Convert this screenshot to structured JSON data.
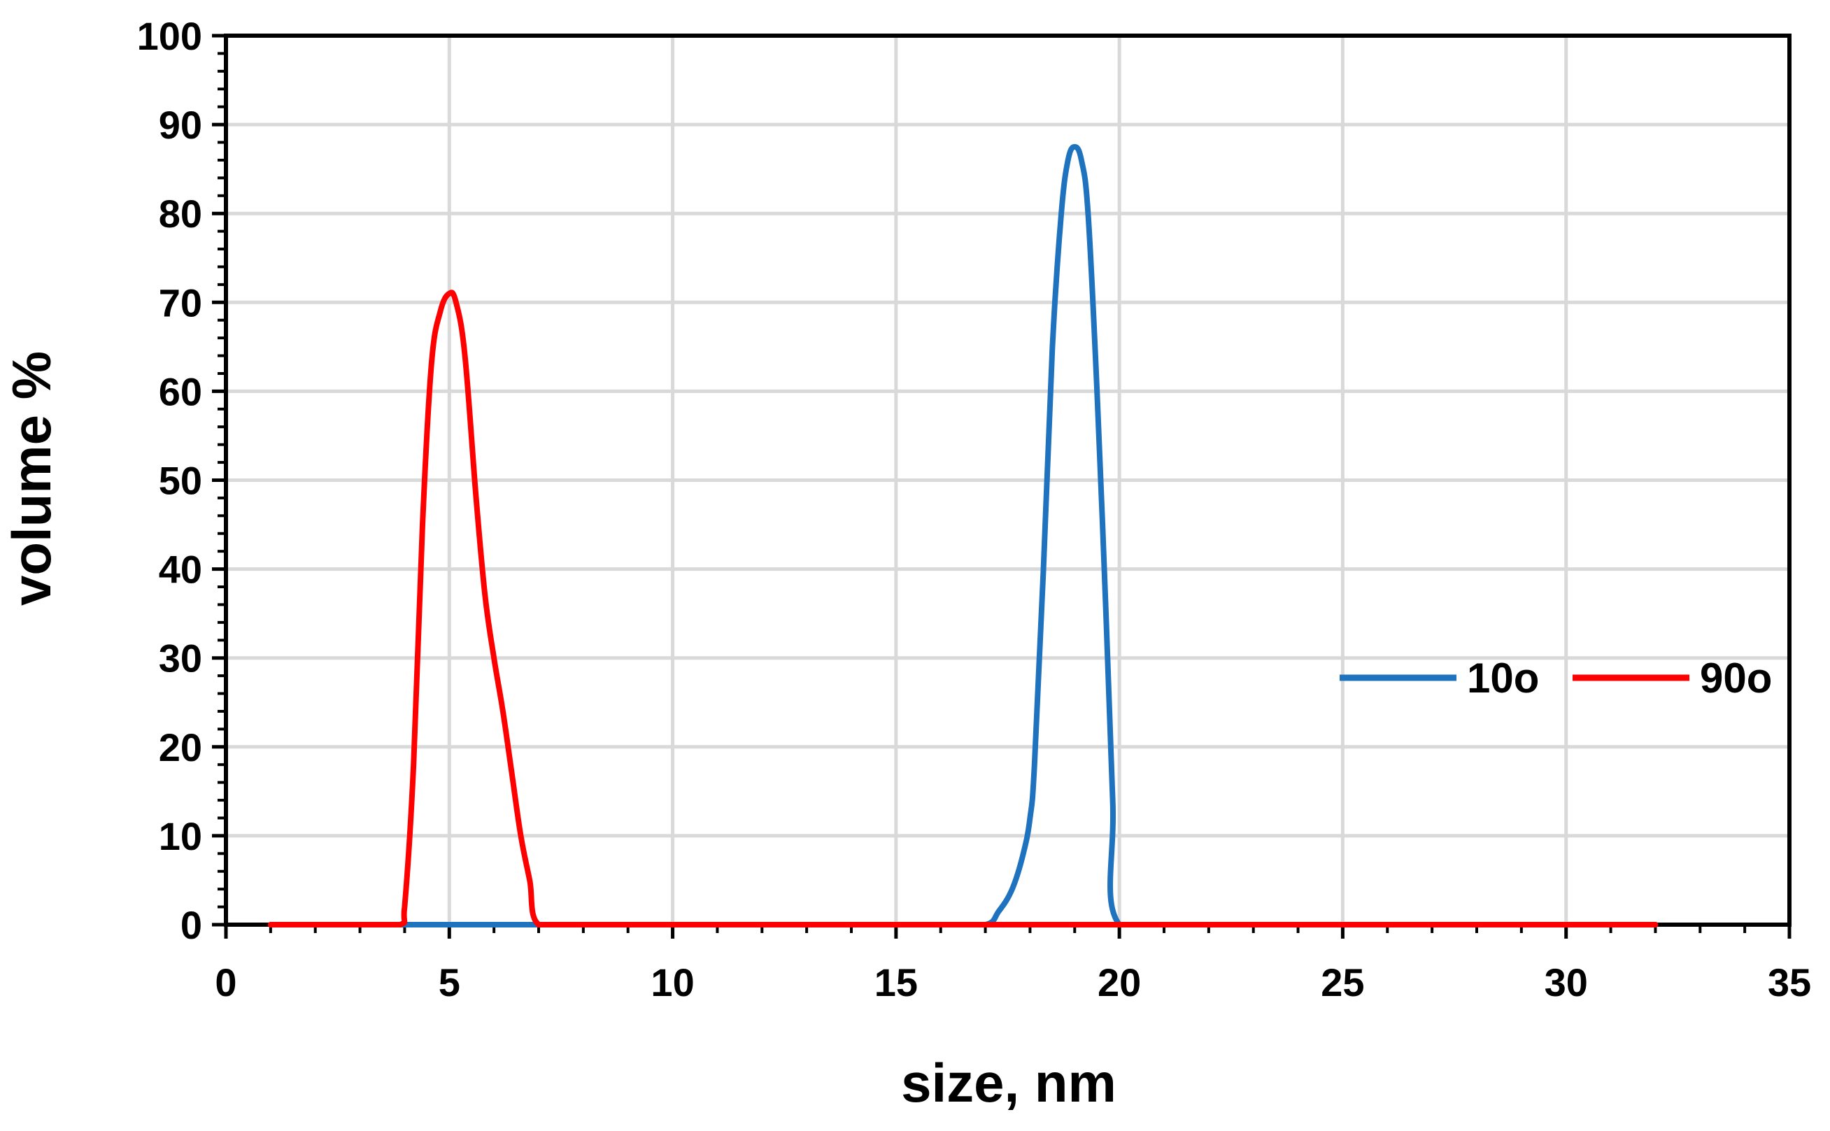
{
  "chart_data": {
    "type": "line",
    "title": "",
    "xlabel": "size, nm",
    "ylabel": "volume %",
    "xlim": [
      0,
      35
    ],
    "ylim": [
      0,
      100
    ],
    "x_ticks": [
      0,
      5,
      10,
      15,
      20,
      25,
      30,
      35
    ],
    "y_ticks": [
      0,
      10,
      20,
      30,
      40,
      50,
      60,
      70,
      80,
      90,
      100
    ],
    "x_tick_labels": [
      "0",
      "5",
      "10",
      "15",
      "20",
      "25",
      "30",
      "35"
    ],
    "y_tick_labels": [
      "0",
      "10",
      "20",
      "30",
      "40",
      "50",
      "60",
      "70",
      "80",
      "90",
      "100"
    ],
    "grid": true,
    "legend_position": "right",
    "series": [
      {
        "name": "10o",
        "color": "#1f72be",
        "points": [
          [
            1,
            0
          ],
          [
            3,
            0
          ],
          [
            5,
            0
          ],
          [
            8,
            0
          ],
          [
            10,
            0
          ],
          [
            12,
            0
          ],
          [
            14,
            0
          ],
          [
            16,
            0
          ],
          [
            17,
            0
          ],
          [
            17.3,
            1.5
          ],
          [
            17.6,
            4
          ],
          [
            17.85,
            8
          ],
          [
            18.0,
            12
          ],
          [
            18.1,
            18
          ],
          [
            18.3,
            40
          ],
          [
            18.5,
            65
          ],
          [
            18.7,
            80
          ],
          [
            18.85,
            86
          ],
          [
            19.0,
            87.5
          ],
          [
            19.15,
            86
          ],
          [
            19.3,
            80
          ],
          [
            19.5,
            60
          ],
          [
            19.7,
            35
          ],
          [
            19.85,
            14
          ],
          [
            20.0,
            0
          ],
          [
            22,
            0
          ],
          [
            25,
            0
          ],
          [
            28,
            0
          ],
          [
            32,
            0
          ]
        ]
      },
      {
        "name": "90o",
        "color": "#ff0000",
        "points": [
          [
            1,
            0
          ],
          [
            3,
            0
          ],
          [
            3.9,
            0
          ],
          [
            4.0,
            2
          ],
          [
            4.2,
            18
          ],
          [
            4.4,
            45
          ],
          [
            4.6,
            63
          ],
          [
            4.8,
            69
          ],
          [
            5.0,
            71
          ],
          [
            5.15,
            70
          ],
          [
            5.35,
            64
          ],
          [
            5.6,
            48
          ],
          [
            5.8,
            37
          ],
          [
            6.0,
            30
          ],
          [
            6.2,
            24
          ],
          [
            6.4,
            17
          ],
          [
            6.6,
            10
          ],
          [
            6.8,
            5
          ],
          [
            7.0,
            0
          ],
          [
            8,
            0
          ],
          [
            10,
            0
          ],
          [
            15,
            0
          ],
          [
            20,
            0
          ],
          [
            25,
            0
          ],
          [
            30,
            0
          ],
          [
            32,
            0
          ]
        ]
      }
    ]
  }
}
